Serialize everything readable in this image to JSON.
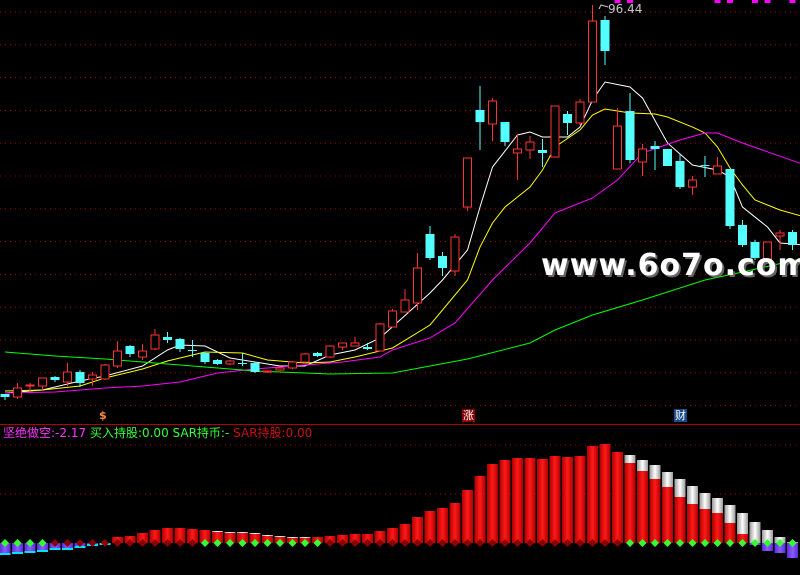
{
  "colors": {
    "up": "#ff3232",
    "down": "#54ffff",
    "ma5": "#ffffff",
    "ma10": "#ffff00",
    "ma20": "#ff00ff",
    "ma60": "#00ff00",
    "grid": "#a00000",
    "separator": "#b00000",
    "bar_red": "#ff0000",
    "bar_white": "#e8e8e8",
    "bar_negative": "#7040ff",
    "marker_green": "#33ff33",
    "marker_red": "#8b0000"
  },
  "high_label": "96.44",
  "watermark": "www.6o7o.com",
  "signals": {
    "dollar": "$",
    "zhang": "涨",
    "cai": "财"
  },
  "indicator": {
    "label1": "坚绝做空:",
    "value1": "-2.17",
    "label2": "买入持股:",
    "value2": "0.00",
    "label3": "SAR持币:",
    "value3": "-",
    "label4": "SAR持股:",
    "value4": "0.00"
  },
  "chart_data": [
    {
      "type": "candlestick",
      "grid": true,
      "ylim": [
        26.72,
        97.28
      ],
      "ohlc": [
        [
          31.09,
          31.09,
          30.08,
          30.58
        ],
        [
          30.58,
          32.94,
          30.25,
          32.1
        ],
        [
          32.43,
          32.94,
          31.42,
          32.6
        ],
        [
          32.43,
          33.78,
          31.93,
          33.78
        ],
        [
          33.94,
          34.11,
          33.1,
          33.44
        ],
        [
          33.1,
          36.3,
          32.43,
          34.78
        ],
        [
          34.78,
          35.12,
          32.26,
          32.94
        ],
        [
          33.61,
          34.78,
          32.43,
          34.28
        ],
        [
          33.61,
          36.13,
          33.44,
          35.96
        ],
        [
          35.79,
          40.0,
          35.46,
          38.31
        ],
        [
          39.15,
          39.32,
          37.3,
          37.81
        ],
        [
          37.3,
          39.49,
          36.8,
          38.31
        ],
        [
          38.65,
          42.01,
          38.48,
          41.0
        ],
        [
          40.66,
          41.5,
          39.66,
          40.16
        ],
        [
          40.33,
          40.5,
          38.14,
          38.65
        ],
        [
          38.48,
          40.16,
          37.3,
          38.31
        ],
        [
          37.98,
          38.14,
          36.13,
          36.46
        ],
        [
          36.8,
          36.97,
          35.96,
          36.13
        ],
        [
          36.13,
          36.8,
          35.96,
          36.63
        ],
        [
          36.3,
          37.98,
          35.79,
          36.3
        ],
        [
          36.3,
          36.46,
          34.62,
          34.78
        ],
        [
          34.78,
          34.95,
          34.62,
          34.95
        ],
        [
          35.12,
          35.79,
          34.95,
          35.46
        ],
        [
          35.46,
          36.63,
          35.29,
          36.46
        ],
        [
          36.46,
          37.98,
          36.3,
          37.81
        ],
        [
          37.98,
          38.14,
          37.3,
          37.47
        ],
        [
          37.3,
          39.32,
          37.13,
          39.15
        ],
        [
          38.98,
          39.66,
          38.48,
          39.66
        ],
        [
          39.15,
          40.66,
          39.15,
          39.66
        ],
        [
          38.98,
          39.66,
          38.48,
          38.65
        ],
        [
          38.31,
          43.02,
          38.31,
          42.85
        ],
        [
          42.34,
          45.37,
          42.34,
          45.03
        ],
        [
          44.86,
          48.73,
          44.86,
          46.88
        ],
        [
          46.38,
          54.78,
          45.2,
          52.26
        ],
        [
          57.97,
          59.31,
          53.6,
          53.94
        ],
        [
          54.27,
          54.94,
          50.91,
          52.26
        ],
        [
          51.75,
          57.97,
          50.91,
          57.46
        ],
        [
          62.5,
          70.74,
          61.83,
          70.74
        ],
        [
          78.8,
          82.83,
          72.08,
          76.78
        ],
        [
          76.45,
          80.82,
          73.59,
          80.31
        ],
        [
          76.78,
          76.78,
          72.75,
          73.42
        ],
        [
          71.58,
          74.77,
          67.04,
          72.25
        ],
        [
          72.08,
          74.43,
          70.57,
          73.42
        ],
        [
          72.08,
          73.93,
          69.22,
          71.58
        ],
        [
          70.9,
          79.47,
          70.9,
          79.47
        ],
        [
          78.13,
          78.63,
          74.6,
          76.62
        ],
        [
          76.62,
          80.65,
          76.28,
          80.14
        ],
        [
          80.14,
          96.44,
          80.14,
          93.75
        ],
        [
          93.92,
          94.59,
          86.36,
          88.71
        ],
        [
          68.89,
          79.14,
          68.89,
          76.11
        ],
        [
          78.63,
          81.66,
          69.9,
          70.4
        ],
        [
          70.06,
          73.09,
          67.71,
          72.25
        ],
        [
          72.75,
          73.59,
          68.72,
          72.25
        ],
        [
          72.25,
          72.25,
          69.39,
          69.39
        ],
        [
          70.23,
          71.41,
          65.53,
          65.86
        ],
        [
          65.86,
          67.71,
          64.52,
          67.04
        ],
        [
          69.56,
          71.07,
          67.54,
          69.56
        ],
        [
          68.05,
          70.9,
          68.05,
          69.39
        ],
        [
          68.89,
          68.89,
          58.81,
          59.31
        ],
        [
          59.48,
          60.32,
          55.78,
          56.12
        ],
        [
          56.62,
          57.0,
          53.6,
          53.94
        ],
        [
          53.77,
          56.62,
          53.26,
          56.62
        ],
        [
          57.63,
          58.64,
          55.28,
          58.14
        ],
        [
          58.3,
          58.64,
          55.28,
          56.12
        ]
      ],
      "moving_averages": [
        {
          "key": "ma5",
          "points": [
            [
              0,
              31.26
            ],
            [
              3,
              31.76
            ],
            [
              6,
              33.27
            ],
            [
              8,
              34.11
            ],
            [
              11,
              35.79
            ],
            [
              13,
              38.48
            ],
            [
              14,
              39.32
            ],
            [
              16,
              39.15
            ],
            [
              18,
              37.14
            ],
            [
              20,
              36.46
            ],
            [
              22,
              35.79
            ],
            [
              24,
              35.79
            ],
            [
              26,
              37.64
            ],
            [
              28,
              38.48
            ],
            [
              30,
              40.5
            ],
            [
              34,
              48.06
            ],
            [
              35,
              50.24
            ],
            [
              37,
              55.28
            ],
            [
              38,
              62.5
            ],
            [
              39,
              69.22
            ],
            [
              41,
              74.6
            ],
            [
              42,
              75.1
            ],
            [
              43,
              74.26
            ],
            [
              45,
              74.26
            ],
            [
              46,
              75.94
            ],
            [
              47,
              80.48
            ],
            [
              48,
              83.5
            ],
            [
              50,
              82.66
            ],
            [
              51,
              80.82
            ],
            [
              53,
              73.26
            ],
            [
              55,
              69.56
            ],
            [
              57,
              68.72
            ],
            [
              58,
              67.54
            ],
            [
              59,
              62.5
            ],
            [
              61,
              59.14
            ],
            [
              62,
              56.46
            ],
            [
              64,
              56.12
            ]
          ]
        },
        {
          "key": "ma10",
          "points": [
            [
              0,
              31.59
            ],
            [
              3,
              31.76
            ],
            [
              6,
              32.43
            ],
            [
              8,
              33.78
            ],
            [
              11,
              35.29
            ],
            [
              13,
              36.63
            ],
            [
              16,
              38.14
            ],
            [
              19,
              37.98
            ],
            [
              21,
              36.8
            ],
            [
              24,
              36.3
            ],
            [
              26,
              36.46
            ],
            [
              28,
              37.3
            ],
            [
              31,
              38.82
            ],
            [
              34,
              42.68
            ],
            [
              37,
              50.24
            ],
            [
              38,
              55.78
            ],
            [
              39,
              59.82
            ],
            [
              40,
              62.5
            ],
            [
              42,
              65.86
            ],
            [
              43,
              68.72
            ],
            [
              44,
              72.58
            ],
            [
              46,
              75.44
            ],
            [
              47,
              77.96
            ],
            [
              48,
              78.97
            ],
            [
              50,
              78.3
            ],
            [
              52,
              78.13
            ],
            [
              53,
              77.62
            ],
            [
              55,
              75.94
            ],
            [
              56,
              74.94
            ],
            [
              57,
              72.58
            ],
            [
              58,
              69.06
            ],
            [
              59,
              66.2
            ],
            [
              60,
              63.68
            ],
            [
              62,
              62.0
            ],
            [
              64,
              60.82
            ]
          ]
        },
        {
          "key": "ma20",
          "points": [
            [
              0,
              31.26
            ],
            [
              4,
              31.42
            ],
            [
              8,
              32.1
            ],
            [
              11,
              32.43
            ],
            [
              14,
              33.1
            ],
            [
              17,
              34.62
            ],
            [
              20,
              35.29
            ],
            [
              24,
              35.96
            ],
            [
              27,
              36.46
            ],
            [
              30,
              37.3
            ],
            [
              31,
              38.48
            ],
            [
              34,
              40.5
            ],
            [
              36,
              43.02
            ],
            [
              39,
              50.24
            ],
            [
              42,
              56.46
            ],
            [
              44,
              61.5
            ],
            [
              47,
              64.02
            ],
            [
              49,
              67.04
            ],
            [
              51,
              71.58
            ],
            [
              54,
              73.76
            ],
            [
              56,
              74.94
            ],
            [
              57,
              74.94
            ],
            [
              59,
              73.26
            ],
            [
              64,
              69.56
            ]
          ]
        },
        {
          "key": "ma60",
          "points": [
            [
              0,
              38.14
            ],
            [
              4,
              37.47
            ],
            [
              8,
              36.97
            ],
            [
              12,
              36.3
            ],
            [
              16,
              35.62
            ],
            [
              20,
              34.95
            ],
            [
              26,
              34.45
            ],
            [
              31,
              34.62
            ],
            [
              37,
              36.97
            ],
            [
              42,
              39.66
            ],
            [
              44,
              41.84
            ],
            [
              47,
              44.36
            ],
            [
              51,
              46.88
            ],
            [
              56,
              50.24
            ],
            [
              59,
              51.58
            ],
            [
              64,
              53.94
            ]
          ]
        }
      ],
      "top_markers": [
        49,
        50,
        57,
        58,
        60,
        61,
        63
      ]
    },
    {
      "type": "bar",
      "grid": true,
      "ylim": [
        -32,
        118
      ],
      "total": [
        -12,
        -11,
        -10,
        -9,
        -7,
        -7,
        -5,
        -3,
        -2,
        6,
        7,
        10,
        13,
        15,
        15,
        14,
        13,
        12,
        11,
        11,
        10,
        8,
        7,
        6,
        6,
        6,
        7,
        8,
        9,
        9,
        12,
        15,
        19,
        26,
        32,
        35,
        40,
        53,
        67,
        79,
        83,
        85,
        85,
        84,
        87,
        86,
        87,
        97,
        99,
        91,
        88,
        83,
        78,
        71,
        64,
        57,
        50,
        45,
        38,
        30,
        21,
        13,
        6,
        1
      ],
      "red": [
        0,
        0,
        0,
        0,
        0,
        0,
        0,
        0,
        0,
        6,
        7,
        10,
        13,
        15,
        15,
        14,
        13,
        11,
        10,
        10,
        9,
        7,
        6,
        5,
        5,
        6,
        7,
        8,
        9,
        9,
        12,
        15,
        19,
        26,
        32,
        35,
        40,
        53,
        67,
        79,
        83,
        85,
        85,
        84,
        87,
        86,
        87,
        97,
        99,
        91,
        80,
        72,
        64,
        56,
        46,
        39,
        34,
        30,
        20,
        9,
        0,
        0,
        0,
        0
      ],
      "negative_extra": [
        0,
        0,
        0,
        0,
        0,
        0,
        0,
        0,
        0,
        0,
        0,
        0,
        0,
        0,
        0,
        0,
        0,
        0,
        0,
        0,
        0,
        0,
        0,
        0,
        0,
        0,
        0,
        0,
        0,
        0,
        0,
        0,
        0,
        0,
        0,
        0,
        0,
        0,
        0,
        0,
        0,
        0,
        0,
        0,
        0,
        0,
        0,
        0,
        0,
        0,
        0,
        0,
        0,
        0,
        0,
        0,
        0,
        0,
        0,
        0,
        -2,
        -8,
        -10,
        -15
      ],
      "green_marker_indices": [
        0,
        1,
        2,
        3,
        16,
        17,
        18,
        19,
        20,
        21,
        22,
        23,
        24,
        25,
        50,
        51,
        52,
        53,
        54,
        55,
        56,
        57,
        58,
        59,
        60,
        61,
        62,
        63
      ]
    }
  ]
}
